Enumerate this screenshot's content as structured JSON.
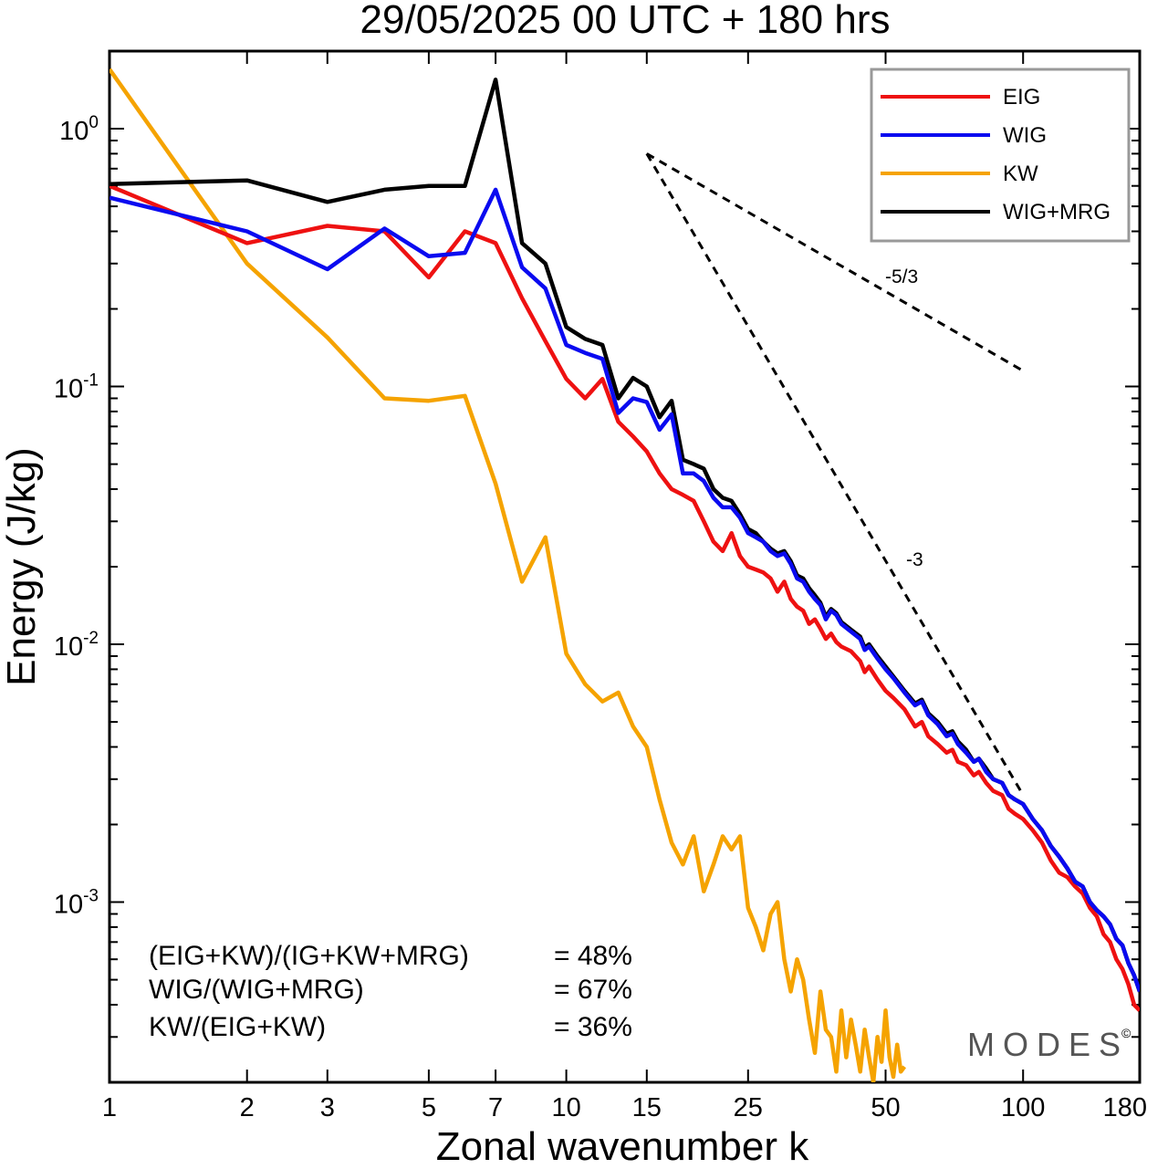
{
  "chart_data": {
    "type": "line",
    "title": "29/05/2025  00 UTC  + 180 hrs",
    "xlabel": "Zonal wavenumber k",
    "ylabel": "Energy (J/kg)",
    "x_scale": "log",
    "y_scale": "log",
    "xlim": [
      1,
      180
    ],
    "ylim": [
      0.0002,
      2
    ],
    "x_ticks": [
      1,
      2,
      3,
      5,
      7,
      10,
      15,
      25,
      50,
      100,
      180
    ],
    "x_tick_labels": [
      "1",
      "2",
      "3",
      "5",
      "7",
      "10",
      "15",
      "25",
      "50",
      "100",
      "180"
    ],
    "y_ticks": [
      {
        "value": 1,
        "base": "10",
        "exp": "0"
      },
      {
        "value": 0.1,
        "base": "10",
        "exp": "-1"
      },
      {
        "value": 0.01,
        "base": "10",
        "exp": "-2"
      },
      {
        "value": 0.001,
        "base": "10",
        "exp": "-3"
      }
    ],
    "grid": false,
    "legend_position": "top-right",
    "legend": [
      "EIG",
      "WIG",
      "KW",
      "WIG+MRG"
    ],
    "series": [
      {
        "name": "EIG",
        "color": "#ee1111",
        "points": [
          [
            1,
            0.6
          ],
          [
            2,
            0.36
          ],
          [
            3,
            0.42
          ],
          [
            4,
            0.4
          ],
          [
            5,
            0.265
          ],
          [
            6,
            0.4
          ],
          [
            7,
            0.36
          ],
          [
            8,
            0.22
          ],
          [
            9,
            0.15
          ],
          [
            10,
            0.107
          ],
          [
            11,
            0.09
          ],
          [
            12,
            0.107
          ],
          [
            13,
            0.073
          ],
          [
            14,
            0.064
          ],
          [
            15,
            0.056
          ],
          [
            16,
            0.046
          ],
          [
            17,
            0.04
          ],
          [
            18,
            0.038
          ],
          [
            19,
            0.036
          ],
          [
            20,
            0.03
          ],
          [
            21,
            0.025
          ],
          [
            22,
            0.023
          ],
          [
            23,
            0.027
          ],
          [
            24,
            0.022
          ],
          [
            25,
            0.02
          ],
          [
            26,
            0.0195
          ],
          [
            27,
            0.019
          ],
          [
            28,
            0.018
          ],
          [
            29,
            0.016
          ],
          [
            30,
            0.0175
          ],
          [
            31,
            0.015
          ],
          [
            32,
            0.014
          ],
          [
            33,
            0.0135
          ],
          [
            34,
            0.012
          ],
          [
            35,
            0.0125
          ],
          [
            36,
            0.0115
          ],
          [
            37,
            0.0105
          ],
          [
            38,
            0.011
          ],
          [
            39,
            0.0102
          ],
          [
            40,
            0.0098
          ],
          [
            42,
            0.0094
          ],
          [
            44,
            0.0086
          ],
          [
            45,
            0.0078
          ],
          [
            46,
            0.0082
          ],
          [
            48,
            0.0073
          ],
          [
            50,
            0.0066
          ],
          [
            52,
            0.0062
          ],
          [
            55,
            0.0056
          ],
          [
            58,
            0.0048
          ],
          [
            60,
            0.005
          ],
          [
            62,
            0.0044
          ],
          [
            65,
            0.0041
          ],
          [
            68,
            0.0038
          ],
          [
            70,
            0.0039
          ],
          [
            72,
            0.0035
          ],
          [
            75,
            0.0034
          ],
          [
            78,
            0.0031
          ],
          [
            80,
            0.0032
          ],
          [
            83,
            0.0029
          ],
          [
            86,
            0.0027
          ],
          [
            90,
            0.0026
          ],
          [
            93,
            0.0023
          ],
          [
            96,
            0.0022
          ],
          [
            100,
            0.0021
          ],
          [
            105,
            0.0019
          ],
          [
            110,
            0.0017
          ],
          [
            115,
            0.00145
          ],
          [
            120,
            0.0013
          ],
          [
            125,
            0.00125
          ],
          [
            130,
            0.00115
          ],
          [
            135,
            0.00108
          ],
          [
            140,
            0.00095
          ],
          [
            145,
            0.00088
          ],
          [
            150,
            0.00075
          ],
          [
            155,
            0.0007
          ],
          [
            160,
            0.0006
          ],
          [
            165,
            0.00055
          ],
          [
            170,
            0.00048
          ],
          [
            175,
            0.0004
          ],
          [
            180,
            0.00038
          ]
        ]
      },
      {
        "name": "WIG",
        "color": "#0a0af0",
        "points": [
          [
            1,
            0.54
          ],
          [
            2,
            0.4
          ],
          [
            3,
            0.285
          ],
          [
            4,
            0.41
          ],
          [
            5,
            0.32
          ],
          [
            6,
            0.33
          ],
          [
            7,
            0.58
          ],
          [
            8,
            0.29
          ],
          [
            9,
            0.24
          ],
          [
            10,
            0.145
          ],
          [
            11,
            0.135
          ],
          [
            12,
            0.128
          ],
          [
            13,
            0.079
          ],
          [
            14,
            0.09
          ],
          [
            15,
            0.087
          ],
          [
            16,
            0.068
          ],
          [
            17,
            0.078
          ],
          [
            18,
            0.046
          ],
          [
            19,
            0.046
          ],
          [
            20,
            0.043
          ],
          [
            21,
            0.037
          ],
          [
            22,
            0.034
          ],
          [
            23,
            0.034
          ],
          [
            24,
            0.031
          ],
          [
            25,
            0.027
          ],
          [
            26,
            0.026
          ],
          [
            27,
            0.025
          ],
          [
            28,
            0.023
          ],
          [
            29,
            0.022
          ],
          [
            30,
            0.0225
          ],
          [
            31,
            0.0205
          ],
          [
            32,
            0.018
          ],
          [
            33,
            0.0175
          ],
          [
            34,
            0.016
          ],
          [
            35,
            0.015
          ],
          [
            36,
            0.0142
          ],
          [
            37,
            0.0125
          ],
          [
            38,
            0.0135
          ],
          [
            39,
            0.013
          ],
          [
            40,
            0.012
          ],
          [
            42,
            0.0112
          ],
          [
            44,
            0.0105
          ],
          [
            45,
            0.0095
          ],
          [
            46,
            0.0098
          ],
          [
            48,
            0.0088
          ],
          [
            50,
            0.008
          ],
          [
            52,
            0.0074
          ],
          [
            55,
            0.0065
          ],
          [
            58,
            0.0058
          ],
          [
            60,
            0.006
          ],
          [
            62,
            0.0053
          ],
          [
            65,
            0.0049
          ],
          [
            68,
            0.0044
          ],
          [
            70,
            0.0045
          ],
          [
            72,
            0.0041
          ],
          [
            75,
            0.0038
          ],
          [
            78,
            0.0035
          ],
          [
            80,
            0.0036
          ],
          [
            83,
            0.0032
          ],
          [
            86,
            0.003
          ],
          [
            90,
            0.0029
          ],
          [
            93,
            0.0026
          ],
          [
            96,
            0.0025
          ],
          [
            100,
            0.0024
          ],
          [
            105,
            0.0021
          ],
          [
            110,
            0.0019
          ],
          [
            115,
            0.00165
          ],
          [
            120,
            0.0015
          ],
          [
            125,
            0.00135
          ],
          [
            130,
            0.0012
          ],
          [
            135,
            0.00115
          ],
          [
            140,
            0.001
          ],
          [
            145,
            0.00093
          ],
          [
            150,
            0.00088
          ],
          [
            155,
            0.00082
          ],
          [
            160,
            0.00072
          ],
          [
            165,
            0.00068
          ],
          [
            170,
            0.00058
          ],
          [
            175,
            0.00052
          ],
          [
            180,
            0.00045
          ]
        ]
      },
      {
        "name": "KW",
        "color": "#f5a300",
        "points": [
          [
            1,
            1.7
          ],
          [
            2,
            0.3
          ],
          [
            3,
            0.155
          ],
          [
            4,
            0.09
          ],
          [
            5,
            0.088
          ],
          [
            6,
            0.092
          ],
          [
            7,
            0.042
          ],
          [
            8,
            0.0175
          ],
          [
            9,
            0.026
          ],
          [
            10,
            0.0092
          ],
          [
            11,
            0.007
          ],
          [
            12,
            0.006
          ],
          [
            13,
            0.0065
          ],
          [
            14,
            0.0048
          ],
          [
            15,
            0.004
          ],
          [
            16,
            0.0025
          ],
          [
            17,
            0.0017
          ],
          [
            18,
            0.0014
          ],
          [
            19,
            0.0018
          ],
          [
            20,
            0.0011
          ],
          [
            21,
            0.0014
          ],
          [
            22,
            0.0018
          ],
          [
            23,
            0.0016
          ],
          [
            24,
            0.0018
          ],
          [
            25,
            0.00095
          ],
          [
            26,
            0.0008
          ],
          [
            27,
            0.00065
          ],
          [
            28,
            0.0009
          ],
          [
            29,
            0.001
          ],
          [
            30,
            0.0006
          ],
          [
            31,
            0.00045
          ],
          [
            32,
            0.0006
          ],
          [
            33,
            0.0005
          ],
          [
            34,
            0.00035
          ],
          [
            35,
            0.00026
          ],
          [
            36,
            0.00045
          ],
          [
            37,
            0.00032
          ],
          [
            38,
            0.0003
          ],
          [
            39,
            0.00022
          ],
          [
            40,
            0.00038
          ],
          [
            41,
            0.00025
          ],
          [
            42,
            0.00035
          ],
          [
            43,
            0.00028
          ],
          [
            44,
            0.00022
          ],
          [
            45,
            0.00032
          ],
          [
            46,
            0.00025
          ],
          [
            47,
            0.0002
          ],
          [
            48,
            0.0003
          ],
          [
            49,
            0.00024
          ],
          [
            50,
            0.00038
          ],
          [
            51,
            0.00025
          ],
          [
            52,
            0.00021
          ],
          [
            53,
            0.00028
          ],
          [
            54,
            0.00022
          ],
          [
            55,
            0.00023
          ]
        ]
      },
      {
        "name": "WIG+MRG",
        "color": "#000000",
        "points": [
          [
            1,
            0.61
          ],
          [
            2,
            0.63
          ],
          [
            3,
            0.52
          ],
          [
            4,
            0.58
          ],
          [
            5,
            0.6
          ],
          [
            6,
            0.6
          ],
          [
            7,
            1.55
          ],
          [
            8,
            0.36
          ],
          [
            9,
            0.3
          ],
          [
            10,
            0.17
          ],
          [
            11,
            0.153
          ],
          [
            12,
            0.145
          ],
          [
            13,
            0.09
          ],
          [
            14,
            0.108
          ],
          [
            15,
            0.1
          ],
          [
            16,
            0.076
          ],
          [
            17,
            0.088
          ],
          [
            18,
            0.052
          ],
          [
            19,
            0.05
          ],
          [
            20,
            0.048
          ],
          [
            21,
            0.04
          ],
          [
            22,
            0.037
          ],
          [
            23,
            0.036
          ],
          [
            24,
            0.032
          ],
          [
            25,
            0.028
          ],
          [
            26,
            0.027
          ],
          [
            27,
            0.025
          ],
          [
            28,
            0.0235
          ],
          [
            29,
            0.0225
          ],
          [
            30,
            0.023
          ],
          [
            31,
            0.021
          ],
          [
            32,
            0.0185
          ],
          [
            33,
            0.018
          ],
          [
            34,
            0.0165
          ],
          [
            35,
            0.0155
          ],
          [
            36,
            0.0145
          ],
          [
            37,
            0.0128
          ],
          [
            38,
            0.0137
          ],
          [
            39,
            0.0132
          ],
          [
            40,
            0.0122
          ],
          [
            42,
            0.0114
          ],
          [
            44,
            0.0107
          ],
          [
            45,
            0.0097
          ],
          [
            46,
            0.01
          ],
          [
            48,
            0.009
          ],
          [
            50,
            0.0082
          ],
          [
            52,
            0.0075
          ],
          [
            55,
            0.0066
          ],
          [
            58,
            0.0059
          ],
          [
            60,
            0.0061
          ],
          [
            62,
            0.0054
          ],
          [
            65,
            0.005
          ],
          [
            68,
            0.0045
          ],
          [
            70,
            0.0046
          ],
          [
            72,
            0.0042
          ],
          [
            75,
            0.0039
          ],
          [
            78,
            0.0035
          ],
          [
            80,
            0.0036
          ],
          [
            83,
            0.0033
          ],
          [
            86,
            0.003
          ],
          [
            90,
            0.0029
          ],
          [
            93,
            0.0026
          ],
          [
            96,
            0.0025
          ],
          [
            100,
            0.0024
          ],
          [
            105,
            0.0021
          ],
          [
            110,
            0.0019
          ],
          [
            115,
            0.00165
          ],
          [
            120,
            0.0015
          ],
          [
            125,
            0.00135
          ],
          [
            130,
            0.0012
          ],
          [
            135,
            0.00115
          ],
          [
            140,
            0.001
          ],
          [
            145,
            0.00093
          ],
          [
            150,
            0.00088
          ],
          [
            155,
            0.00082
          ],
          [
            160,
            0.00072
          ],
          [
            165,
            0.00068
          ],
          [
            170,
            0.00058
          ],
          [
            175,
            0.00052
          ],
          [
            180,
            0.00045
          ]
        ]
      }
    ],
    "reference_lines": [
      {
        "label": "-5/3",
        "points": [
          [
            15,
            0.8
          ],
          [
            100,
            0.115
          ]
        ]
      },
      {
        "label": "-3",
        "points": [
          [
            15,
            0.8
          ],
          [
            100,
            0.0026
          ]
        ]
      }
    ],
    "annotations": [
      {
        "label": "(EIG+KW)/(IG+KW+MRG)",
        "value": "= 48%"
      },
      {
        "label": "WIG/(WIG+MRG)",
        "value": "= 67%"
      },
      {
        "label": "KW/(EIG+KW)",
        "value": "= 36%"
      }
    ],
    "watermark": "MODES",
    "watermark_mark": "©"
  }
}
